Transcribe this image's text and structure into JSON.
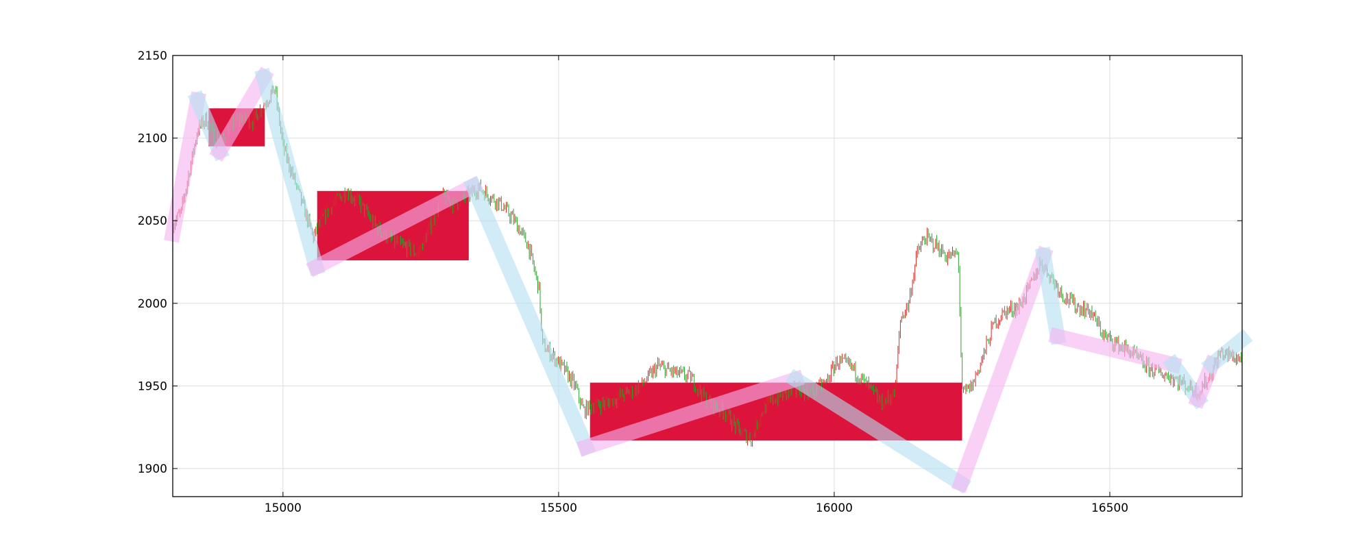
{
  "chart_data": {
    "type": "candlestick",
    "title": "",
    "xlabel": "",
    "ylabel": "",
    "xlim": [
      14800,
      16740
    ],
    "ylim": [
      1883,
      2150
    ],
    "xticks": [
      15000,
      15500,
      16000,
      16500
    ],
    "yticks": [
      1900,
      1950,
      2000,
      2050,
      2100,
      2150
    ],
    "grid": true,
    "legend": "none",
    "colors": {
      "up_candle": "#d62728",
      "down_candle": "#2ca02c",
      "range_box": "#dc143c",
      "up_swing": "#f5b3f0",
      "down_swing": "#b3dff2"
    },
    "price_path": [
      [
        14800,
        2048
      ],
      [
        14815,
        2055
      ],
      [
        14830,
        2080
      ],
      [
        14845,
        2105
      ],
      [
        14860,
        2112
      ],
      [
        14875,
        2100
      ],
      [
        14890,
        2098
      ],
      [
        14905,
        2108
      ],
      [
        14925,
        2112
      ],
      [
        14945,
        2110
      ],
      [
        14965,
        2120
      ],
      [
        14985,
        2130
      ],
      [
        15000,
        2095
      ],
      [
        15020,
        2075
      ],
      [
        15035,
        2060
      ],
      [
        15055,
        2040
      ],
      [
        15070,
        2050
      ],
      [
        15090,
        2060
      ],
      [
        15115,
        2068
      ],
      [
        15140,
        2060
      ],
      [
        15165,
        2048
      ],
      [
        15190,
        2040
      ],
      [
        15215,
        2035
      ],
      [
        15245,
        2030
      ],
      [
        15270,
        2048
      ],
      [
        15290,
        2065
      ],
      [
        15310,
        2060
      ],
      [
        15335,
        2065
      ],
      [
        15355,
        2070
      ],
      [
        15375,
        2065
      ],
      [
        15395,
        2060
      ],
      [
        15420,
        2050
      ],
      [
        15445,
        2035
      ],
      [
        15465,
        2008
      ],
      [
        15470,
        1975
      ],
      [
        15490,
        1968
      ],
      [
        15510,
        1960
      ],
      [
        15530,
        1950
      ],
      [
        15545,
        1935
      ],
      [
        15560,
        1938
      ],
      [
        15590,
        1940
      ],
      [
        15620,
        1945
      ],
      [
        15650,
        1950
      ],
      [
        15680,
        1962
      ],
      [
        15710,
        1958
      ],
      [
        15740,
        1955
      ],
      [
        15770,
        1940
      ],
      [
        15800,
        1935
      ],
      [
        15830,
        1922
      ],
      [
        15850,
        1918
      ],
      [
        15870,
        1935
      ],
      [
        15890,
        1942
      ],
      [
        15910,
        1945
      ],
      [
        15935,
        1948
      ],
      [
        15960,
        1946
      ],
      [
        15985,
        1952
      ],
      [
        16005,
        1965
      ],
      [
        16030,
        1962
      ],
      [
        16060,
        1950
      ],
      [
        16085,
        1940
      ],
      [
        16110,
        1945
      ],
      [
        16120,
        1990
      ],
      [
        16135,
        2000
      ],
      [
        16150,
        2030
      ],
      [
        16165,
        2040
      ],
      [
        16185,
        2035
      ],
      [
        16205,
        2028
      ],
      [
        16225,
        2030
      ],
      [
        16232,
        1945
      ],
      [
        16250,
        1950
      ],
      [
        16270,
        1968
      ],
      [
        16290,
        1988
      ],
      [
        16310,
        1995
      ],
      [
        16335,
        1998
      ],
      [
        16355,
        2010
      ],
      [
        16375,
        2025
      ],
      [
        16395,
        2015
      ],
      [
        16415,
        2005
      ],
      [
        16440,
        1998
      ],
      [
        16465,
        1995
      ],
      [
        16490,
        1980
      ],
      [
        16515,
        1975
      ],
      [
        16540,
        1970
      ],
      [
        16565,
        1962
      ],
      [
        16590,
        1958
      ],
      [
        16615,
        1955
      ],
      [
        16640,
        1950
      ],
      [
        16660,
        1946
      ],
      [
        16680,
        1955
      ],
      [
        16700,
        1970
      ],
      [
        16720,
        1968
      ],
      [
        16740,
        1966
      ]
    ],
    "range_boxes": [
      {
        "x0": 14865,
        "x1": 14967,
        "y0": 2095,
        "y1": 2118
      },
      {
        "x0": 15062,
        "x1": 15337,
        "y0": 2026,
        "y1": 2068
      },
      {
        "x0": 15557,
        "x1": 16232,
        "y0": 1917,
        "y1": 1952
      }
    ],
    "swing_segments": [
      {
        "dir": "up",
        "x0": 14800,
        "y0": 2042,
        "x1": 14845,
        "y1": 2123
      },
      {
        "dir": "down",
        "x0": 14845,
        "y0": 2123,
        "x1": 14885,
        "y1": 2092
      },
      {
        "dir": "up",
        "x0": 14885,
        "y0": 2092,
        "x1": 14965,
        "y1": 2137
      },
      {
        "dir": "down",
        "x0": 14965,
        "y0": 2137,
        "x1": 15060,
        "y1": 2022
      },
      {
        "dir": "up",
        "x0": 15060,
        "y0": 2022,
        "x1": 15345,
        "y1": 2071
      },
      {
        "dir": "down",
        "x0": 15345,
        "y0": 2071,
        "x1": 15550,
        "y1": 1913
      },
      {
        "dir": "up",
        "x0": 15550,
        "y0": 1913,
        "x1": 15930,
        "y1": 1954
      },
      {
        "dir": "down",
        "x0": 15930,
        "y0": 1954,
        "x1": 16230,
        "y1": 1891
      },
      {
        "dir": "up",
        "x0": 16230,
        "y0": 1891,
        "x1": 16380,
        "y1": 2029
      },
      {
        "dir": "down",
        "x0": 16380,
        "y0": 2029,
        "x1": 16405,
        "y1": 1980
      },
      {
        "dir": "up",
        "x0": 16405,
        "y0": 1980,
        "x1": 16615,
        "y1": 1963
      },
      {
        "dir": "down",
        "x0": 16615,
        "y0": 1963,
        "x1": 16660,
        "y1": 1942
      },
      {
        "dir": "up",
        "x0": 16660,
        "y0": 1942,
        "x1": 16685,
        "y1": 1963
      },
      {
        "dir": "down",
        "x0": 16685,
        "y0": 1963,
        "x1": 16740,
        "y1": 1978
      }
    ]
  }
}
